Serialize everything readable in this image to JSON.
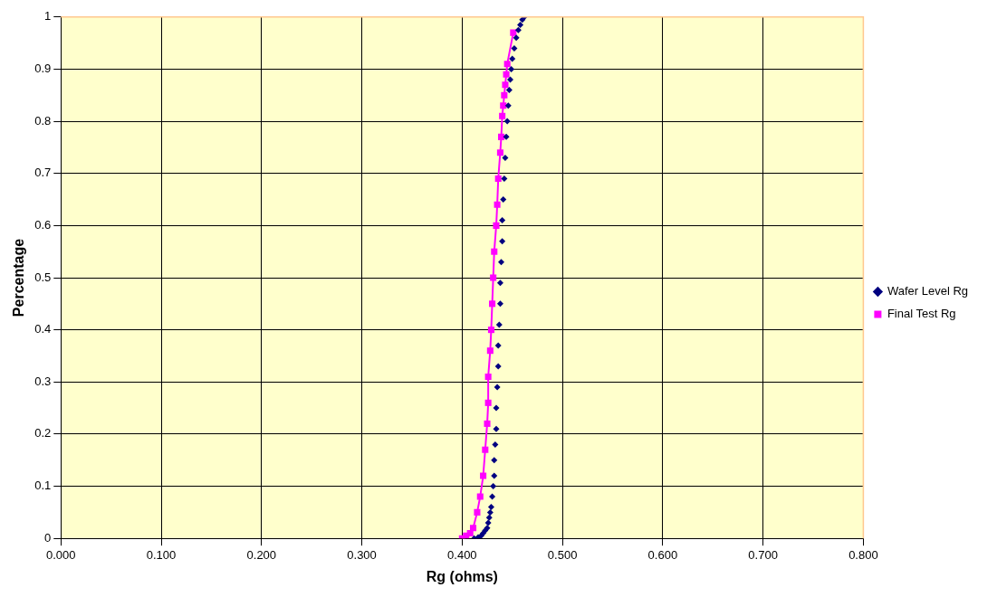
{
  "chart_data": {
    "type": "scatter",
    "xlabel": "Rg (ohms)",
    "ylabel": "Percentage",
    "xlim": [
      0,
      0.8
    ],
    "xticks": [
      {
        "value": 0,
        "label": "0.000"
      },
      {
        "value": 0.1,
        "label": "0.100"
      },
      {
        "value": 0.2,
        "label": "0.200"
      },
      {
        "value": 0.3,
        "label": "0.300"
      },
      {
        "value": 0.4,
        "label": "0.400"
      },
      {
        "value": 0.5,
        "label": "0.500"
      },
      {
        "value": 0.6,
        "label": "0.600"
      },
      {
        "value": 0.7,
        "label": "0.700"
      },
      {
        "value": 0.8,
        "label": "0.800"
      }
    ],
    "ylim": [
      0,
      1
    ],
    "yticks": [
      0,
      0.1,
      0.2,
      0.3,
      0.4,
      0.5,
      0.6,
      0.7,
      0.8,
      0.9,
      1
    ],
    "grid": true,
    "legend": "right",
    "series": [
      {
        "name": "Wafer Level Rg",
        "type": "scatter",
        "marker": "diamond",
        "color": "#000080",
        "x": [
          0.412,
          0.416,
          0.419,
          0.421,
          0.423,
          0.425,
          0.426,
          0.427,
          0.428,
          0.429,
          0.43,
          0.431,
          0.432,
          0.432,
          0.433,
          0.434,
          0.434,
          0.435,
          0.436,
          0.436,
          0.437,
          0.438,
          0.438,
          0.439,
          0.44,
          0.44,
          0.441,
          0.442,
          0.443,
          0.444,
          0.445,
          0.446,
          0.447,
          0.448,
          0.449,
          0.45,
          0.452,
          0.454,
          0.456,
          0.458,
          0.46,
          0.462
        ],
        "values": [
          0,
          0.002,
          0.005,
          0.01,
          0.015,
          0.02,
          0.03,
          0.04,
          0.05,
          0.06,
          0.08,
          0.1,
          0.12,
          0.15,
          0.18,
          0.21,
          0.25,
          0.29,
          0.33,
          0.37,
          0.41,
          0.45,
          0.49,
          0.53,
          0.57,
          0.61,
          0.65,
          0.69,
          0.73,
          0.77,
          0.8,
          0.83,
          0.86,
          0.88,
          0.9,
          0.92,
          0.94,
          0.96,
          0.975,
          0.985,
          0.995,
          1
        ]
      },
      {
        "name": "Final Test Rg",
        "type": "line",
        "marker": "square",
        "line_style": "solid",
        "color": "#ff00ff",
        "x": [
          0.4,
          0.404,
          0.408,
          0.411,
          0.415,
          0.418,
          0.421,
          0.423,
          0.425,
          0.426,
          0.426,
          0.428,
          0.429,
          0.43,
          0.431,
          0.432,
          0.434,
          0.435,
          0.436,
          0.438,
          0.439,
          0.44,
          0.441,
          0.442,
          0.443,
          0.444,
          0.445,
          0.451
        ],
        "values": [
          0,
          0.005,
          0.01,
          0.02,
          0.05,
          0.08,
          0.12,
          0.17,
          0.22,
          0.26,
          0.31,
          0.36,
          0.4,
          0.45,
          0.5,
          0.55,
          0.6,
          0.64,
          0.69,
          0.74,
          0.77,
          0.81,
          0.83,
          0.85,
          0.87,
          0.89,
          0.91,
          0.97
        ]
      }
    ]
  }
}
